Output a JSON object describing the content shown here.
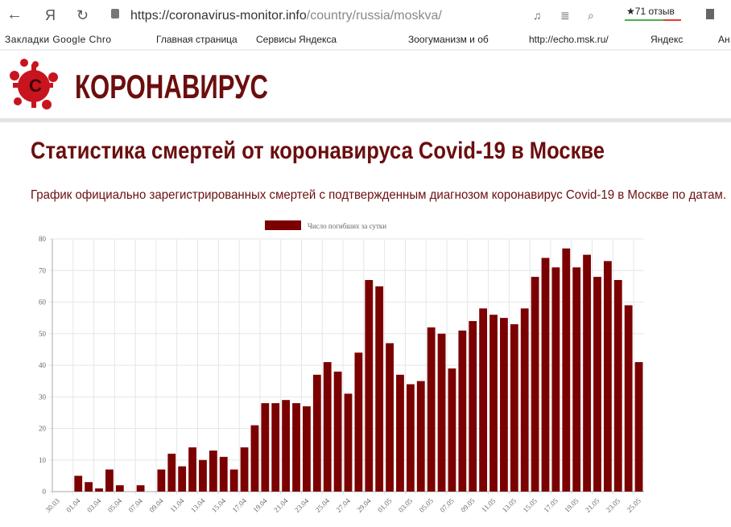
{
  "browser": {
    "url_host": "https://coronavirus-monitor.info",
    "url_path": "/country/russia/moskva/",
    "reviews": "71 отзыв",
    "bookmarks": [
      "Закладки Google Chro",
      "Главная страница",
      "Сервисы Яндекса",
      "Зоогуманизм и об",
      "http://echo.msk.ru/",
      "Яндекс",
      "Ан"
    ]
  },
  "header": {
    "logo_letter": "C",
    "site_name": "КОРОНАВИРУС"
  },
  "page": {
    "title": "Статистика смертей от коронавируса Covid-19 в Москве",
    "subtitle": "График официально зарегистрированных смертей с подтвержденным диагнозом коронавирус Covid-19 в Москве по датам."
  },
  "chart_data": {
    "type": "bar",
    "categories": [
      "30.03",
      null,
      "01.04",
      null,
      "03.04",
      null,
      "05.04",
      null,
      "07.04",
      null,
      "09.04",
      null,
      "11.04",
      null,
      "13.04",
      null,
      "15.04",
      null,
      "17.04",
      null,
      "19.04",
      null,
      "21.04",
      null,
      "23.04",
      null,
      "25.04",
      null,
      "27.04",
      null,
      "29.04",
      null,
      "01.05",
      null,
      "03.05",
      null,
      "05.05",
      null,
      "07.05",
      null,
      "09.05",
      null,
      "11.05",
      null,
      "13.05",
      null,
      "15.05",
      null,
      "17.05",
      null,
      "19.05",
      null,
      "21.05",
      null,
      "23.05",
      null,
      "25.05"
    ],
    "series": [
      {
        "name": "Число погибших за сутки",
        "color": "#7b0000",
        "values": [
          0,
          0,
          5,
          3,
          1,
          7,
          2,
          0,
          2,
          0,
          7,
          12,
          8,
          14,
          10,
          13,
          11,
          7,
          14,
          21,
          28,
          28,
          29,
          28,
          27,
          37,
          41,
          38,
          31,
          44,
          67,
          65,
          47,
          37,
          34,
          35,
          52,
          50,
          39,
          51,
          54,
          58,
          56,
          55,
          53,
          58,
          68,
          74,
          71,
          77,
          71,
          75,
          68,
          73,
          67,
          59,
          41
        ]
      }
    ],
    "ylim": [
      0,
      80
    ],
    "yticks": [
      0,
      10,
      20,
      30,
      40,
      50,
      60,
      70,
      80
    ],
    "grid": true,
    "legend": "top"
  }
}
